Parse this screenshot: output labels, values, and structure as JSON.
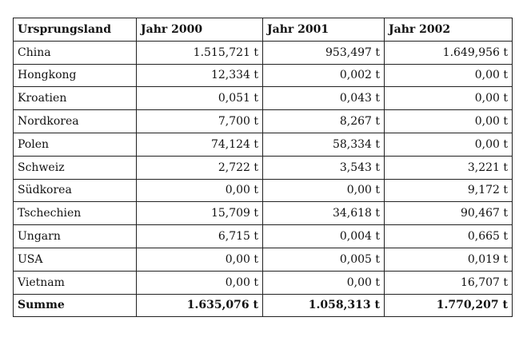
{
  "table": {
    "headers": [
      "Ursprungsland",
      "Jahr 2000",
      "Jahr 2001",
      "Jahr 2002"
    ],
    "rows": [
      [
        "China",
        "1.515,721 t",
        "953,497 t",
        "1.649,956 t"
      ],
      [
        "Hongkong",
        "12,334 t",
        "0,002 t",
        "0,00 t"
      ],
      [
        "Kroatien",
        "0,051 t",
        "0,043 t",
        "0,00 t"
      ],
      [
        "Nordkorea",
        "7,700 t",
        "8,267 t",
        "0,00 t"
      ],
      [
        "Polen",
        "74,124 t",
        "58,334 t",
        "0,00 t"
      ],
      [
        "Schweiz",
        "2,722 t",
        "3,543 t",
        "3,221 t"
      ],
      [
        "Südkorea",
        "0,00 t",
        "0,00 t",
        "9,172 t"
      ],
      [
        "Tschechien",
        "15,709 t",
        "34,618 t",
        "90,467 t"
      ],
      [
        "Ungarn",
        "6,715 t",
        "0,004 t",
        "0,665 t"
      ],
      [
        "USA",
        "0,00 t",
        "0,005 t",
        "0,019 t"
      ],
      [
        "Vietnam",
        "0,00 t",
        "0,00 t",
        "16,707 t"
      ]
    ],
    "total": [
      "Summe",
      "1.635,076 t",
      "1.058,313 t",
      "1.770,207 t"
    ]
  }
}
